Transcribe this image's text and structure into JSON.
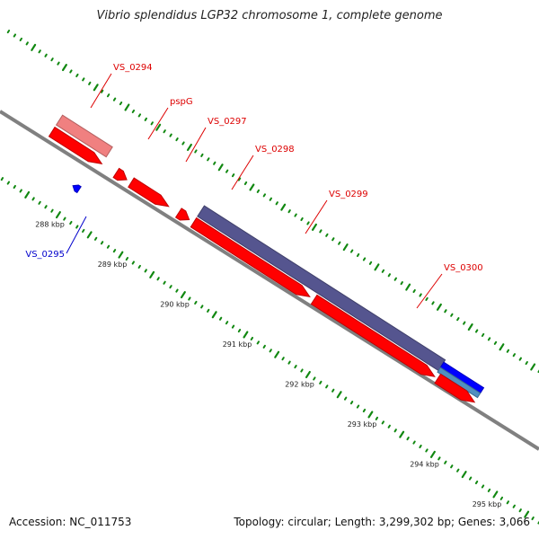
{
  "title": "Vibrio splendidus LGP32 chromosome 1, complete genome",
  "footer": {
    "accession": "Accession: NC_011753",
    "stats": "Topology: circular; Length: 3,299,302 bp; Genes: 3,066"
  },
  "kbp_labels": [
    {
      "text": "288 kbp",
      "value": 288
    },
    {
      "text": "289 kbp",
      "value": 289
    },
    {
      "text": "290 kbp",
      "value": 290
    },
    {
      "text": "291 kbp",
      "value": 291
    },
    {
      "text": "292 kbp",
      "value": 292
    },
    {
      "text": "293 kbp",
      "value": 293
    },
    {
      "text": "294 kbp",
      "value": 294
    },
    {
      "text": "295 kbp",
      "value": 295
    }
  ],
  "genes": [
    {
      "name": "VS_0294",
      "strand": "+",
      "start_kbp": 287.35,
      "end_kbp": 288.15,
      "color": "#ff0000",
      "label_color": "#dd0000"
    },
    {
      "name": "VS_0295",
      "strand": "-",
      "start_kbp": 287.98,
      "end_kbp": 288.08,
      "color": "#0000ff",
      "label_color": "#0000cc"
    },
    {
      "name": "pspG",
      "strand": "+",
      "start_kbp": 288.38,
      "end_kbp": 288.55,
      "color": "#ff0000",
      "label_color": "#dd0000"
    },
    {
      "name": "VS_0297",
      "strand": "+",
      "start_kbp": 288.62,
      "end_kbp": 289.22,
      "color": "#ff0000",
      "label_color": "#dd0000"
    },
    {
      "name": "VS_0298",
      "strand": "+",
      "start_kbp": 289.38,
      "end_kbp": 289.55,
      "color": "#ff0000",
      "label_color": "#dd0000"
    },
    {
      "name": "VS_0299",
      "strand": "+",
      "start_kbp": 289.62,
      "end_kbp": 291.48,
      "color": "#ff0000",
      "label_color": "#dd0000"
    },
    {
      "name": "VS_0300",
      "strand": "+",
      "start_kbp": 291.55,
      "end_kbp": 293.48,
      "color": "#ff0000",
      "label_color": "#dd0000"
    },
    {
      "name": "",
      "strand": "+",
      "start_kbp": 293.53,
      "end_kbp": 294.12,
      "color": "#ff0000",
      "label_color": "#dd0000"
    }
  ],
  "features": [
    {
      "kind": "light-red",
      "start_kbp": 287.35,
      "end_kbp": 288.15,
      "color": "#f08080"
    },
    {
      "kind": "purple",
      "start_kbp": 289.62,
      "end_kbp": 293.48,
      "color": "#55558f"
    },
    {
      "kind": "blue",
      "start_kbp": 293.48,
      "end_kbp": 294.12,
      "color": "#0000ff"
    },
    {
      "kind": "steel-blue",
      "start_kbp": 293.48,
      "end_kbp": 294.12,
      "color": "#5090c0"
    }
  ],
  "colors": {
    "backbone": "#808080",
    "ticks": "#118811"
  }
}
